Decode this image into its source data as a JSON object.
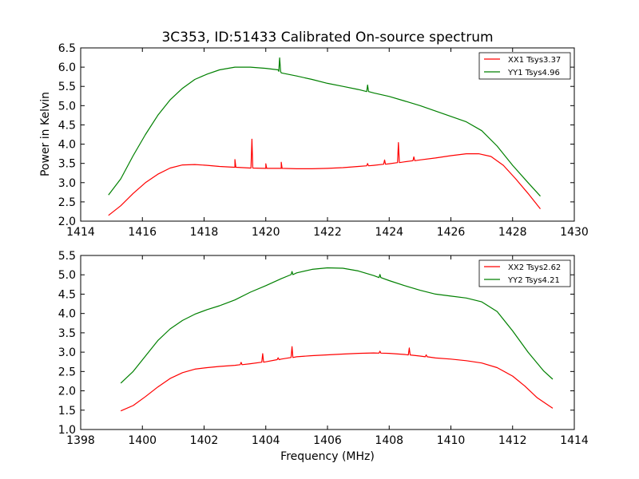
{
  "chart_data": [
    {
      "type": "line",
      "title": "3C353, ID:51433 Calibrated On-source spectrum",
      "xlabel": "",
      "ylabel": "Power in Kelvin",
      "xlim": [
        1414,
        1430
      ],
      "ylim": [
        2.0,
        6.5
      ],
      "xticks": [
        "1414",
        "1416",
        "1418",
        "1420",
        "1422",
        "1424",
        "1426",
        "1428",
        "1430"
      ],
      "yticks": [
        "2.0",
        "2.5",
        "3.0",
        "3.5",
        "4.0",
        "4.5",
        "5.0",
        "5.5",
        "6.0",
        "6.5"
      ],
      "legend_position": "top-right",
      "series": [
        {
          "name": "XX1 Tsys3.37",
          "color": "#ff0000",
          "points": [
            [
              1414.9,
              2.15
            ],
            [
              1415.3,
              2.4
            ],
            [
              1415.7,
              2.72
            ],
            [
              1416.1,
              3.0
            ],
            [
              1416.5,
              3.22
            ],
            [
              1416.9,
              3.38
            ],
            [
              1417.3,
              3.46
            ],
            [
              1417.7,
              3.47
            ],
            [
              1418.1,
              3.45
            ],
            [
              1418.5,
              3.42
            ],
            [
              1419.0,
              3.4
            ],
            [
              1419.5,
              3.38
            ],
            [
              1420.0,
              3.37
            ],
            [
              1420.5,
              3.37
            ],
            [
              1421.0,
              3.36
            ],
            [
              1421.5,
              3.36
            ],
            [
              1422.0,
              3.37
            ],
            [
              1422.5,
              3.39
            ],
            [
              1423.0,
              3.42
            ],
            [
              1423.5,
              3.45
            ],
            [
              1424.0,
              3.49
            ],
            [
              1424.5,
              3.54
            ],
            [
              1425.0,
              3.59
            ],
            [
              1425.5,
              3.64
            ],
            [
              1426.0,
              3.7
            ],
            [
              1426.5,
              3.75
            ],
            [
              1426.9,
              3.75
            ],
            [
              1427.3,
              3.68
            ],
            [
              1427.7,
              3.45
            ],
            [
              1428.1,
              3.1
            ],
            [
              1428.5,
              2.72
            ],
            [
              1428.9,
              2.32
            ]
          ],
          "spikes": [
            [
              1419.0,
              0.2
            ],
            [
              1419.55,
              0.75
            ],
            [
              1420.0,
              0.12
            ],
            [
              1420.5,
              0.16
            ],
            [
              1423.3,
              0.06
            ],
            [
              1423.85,
              0.11
            ],
            [
              1424.3,
              0.52
            ],
            [
              1424.8,
              0.1
            ]
          ]
        },
        {
          "name": "YY1 Tsys4.96",
          "color": "#008000",
          "points": [
            [
              1414.9,
              2.68
            ],
            [
              1415.3,
              3.1
            ],
            [
              1415.7,
              3.7
            ],
            [
              1416.1,
              4.25
            ],
            [
              1416.5,
              4.75
            ],
            [
              1416.9,
              5.15
            ],
            [
              1417.3,
              5.45
            ],
            [
              1417.7,
              5.68
            ],
            [
              1418.1,
              5.82
            ],
            [
              1418.5,
              5.93
            ],
            [
              1419.0,
              6.0
            ],
            [
              1419.5,
              6.0
            ],
            [
              1420.0,
              5.97
            ],
            [
              1420.4,
              5.93
            ],
            [
              1420.5,
              5.85
            ],
            [
              1421.0,
              5.77
            ],
            [
              1421.5,
              5.68
            ],
            [
              1422.0,
              5.58
            ],
            [
              1422.5,
              5.5
            ],
            [
              1423.0,
              5.42
            ],
            [
              1423.5,
              5.33
            ],
            [
              1424.0,
              5.24
            ],
            [
              1424.5,
              5.12
            ],
            [
              1425.0,
              5.0
            ],
            [
              1425.5,
              4.86
            ],
            [
              1426.0,
              4.72
            ],
            [
              1426.5,
              4.58
            ],
            [
              1427.0,
              4.35
            ],
            [
              1427.5,
              3.95
            ],
            [
              1428.0,
              3.45
            ],
            [
              1428.5,
              3.0
            ],
            [
              1428.9,
              2.65
            ]
          ],
          "spikes": [
            [
              1420.45,
              0.35
            ],
            [
              1423.3,
              0.17
            ]
          ]
        }
      ]
    },
    {
      "type": "line",
      "title": "",
      "xlabel": "Frequency (MHz)",
      "ylabel": "",
      "xlim": [
        1398,
        1414
      ],
      "ylim": [
        1.0,
        5.5
      ],
      "xticks": [
        "1398",
        "1400",
        "1402",
        "1404",
        "1406",
        "1408",
        "1410",
        "1412",
        "1414"
      ],
      "yticks": [
        "1.0",
        "1.5",
        "2.0",
        "2.5",
        "3.0",
        "3.5",
        "4.0",
        "4.5",
        "5.0",
        "5.5"
      ],
      "legend_position": "top-right",
      "series": [
        {
          "name": "XX2 Tsys2.62",
          "color": "#ff0000",
          "points": [
            [
              1399.3,
              1.48
            ],
            [
              1399.7,
              1.62
            ],
            [
              1400.1,
              1.85
            ],
            [
              1400.5,
              2.1
            ],
            [
              1400.9,
              2.32
            ],
            [
              1401.3,
              2.47
            ],
            [
              1401.7,
              2.56
            ],
            [
              1402.1,
              2.6
            ],
            [
              1402.5,
              2.63
            ],
            [
              1403.0,
              2.66
            ],
            [
              1403.5,
              2.7
            ],
            [
              1404.0,
              2.75
            ],
            [
              1404.5,
              2.82
            ],
            [
              1405.0,
              2.88
            ],
            [
              1405.5,
              2.91
            ],
            [
              1406.0,
              2.93
            ],
            [
              1406.5,
              2.95
            ],
            [
              1407.0,
              2.97
            ],
            [
              1407.5,
              2.98
            ],
            [
              1408.0,
              2.97
            ],
            [
              1408.5,
              2.94
            ],
            [
              1409.0,
              2.9
            ],
            [
              1409.5,
              2.85
            ],
            [
              1410.0,
              2.82
            ],
            [
              1410.5,
              2.78
            ],
            [
              1411.0,
              2.72
            ],
            [
              1411.5,
              2.6
            ],
            [
              1412.0,
              2.38
            ],
            [
              1412.4,
              2.12
            ],
            [
              1412.8,
              1.82
            ],
            [
              1413.3,
              1.55
            ]
          ],
          "spikes": [
            [
              1403.2,
              0.06
            ],
            [
              1403.9,
              0.22
            ],
            [
              1404.4,
              0.05
            ],
            [
              1404.85,
              0.28
            ],
            [
              1407.7,
              0.05
            ],
            [
              1408.65,
              0.18
            ],
            [
              1409.2,
              0.05
            ]
          ]
        },
        {
          "name": "YY2 Tsys4.21",
          "color": "#008000",
          "points": [
            [
              1399.3,
              2.2
            ],
            [
              1399.7,
              2.5
            ],
            [
              1400.1,
              2.9
            ],
            [
              1400.5,
              3.3
            ],
            [
              1400.9,
              3.6
            ],
            [
              1401.3,
              3.82
            ],
            [
              1401.7,
              3.98
            ],
            [
              1402.1,
              4.1
            ],
            [
              1402.5,
              4.2
            ],
            [
              1403.0,
              4.35
            ],
            [
              1403.5,
              4.55
            ],
            [
              1404.0,
              4.72
            ],
            [
              1404.5,
              4.9
            ],
            [
              1405.0,
              5.05
            ],
            [
              1405.5,
              5.14
            ],
            [
              1406.0,
              5.18
            ],
            [
              1406.5,
              5.17
            ],
            [
              1407.0,
              5.1
            ],
            [
              1407.5,
              4.98
            ],
            [
              1408.0,
              4.85
            ],
            [
              1408.5,
              4.72
            ],
            [
              1409.0,
              4.6
            ],
            [
              1409.5,
              4.5
            ],
            [
              1410.0,
              4.45
            ],
            [
              1410.5,
              4.4
            ],
            [
              1411.0,
              4.3
            ],
            [
              1411.5,
              4.05
            ],
            [
              1412.0,
              3.55
            ],
            [
              1412.5,
              3.0
            ],
            [
              1413.0,
              2.52
            ],
            [
              1413.3,
              2.3
            ]
          ],
          "spikes": [
            [
              1404.85,
              0.08
            ],
            [
              1407.7,
              0.08
            ]
          ]
        }
      ]
    }
  ]
}
